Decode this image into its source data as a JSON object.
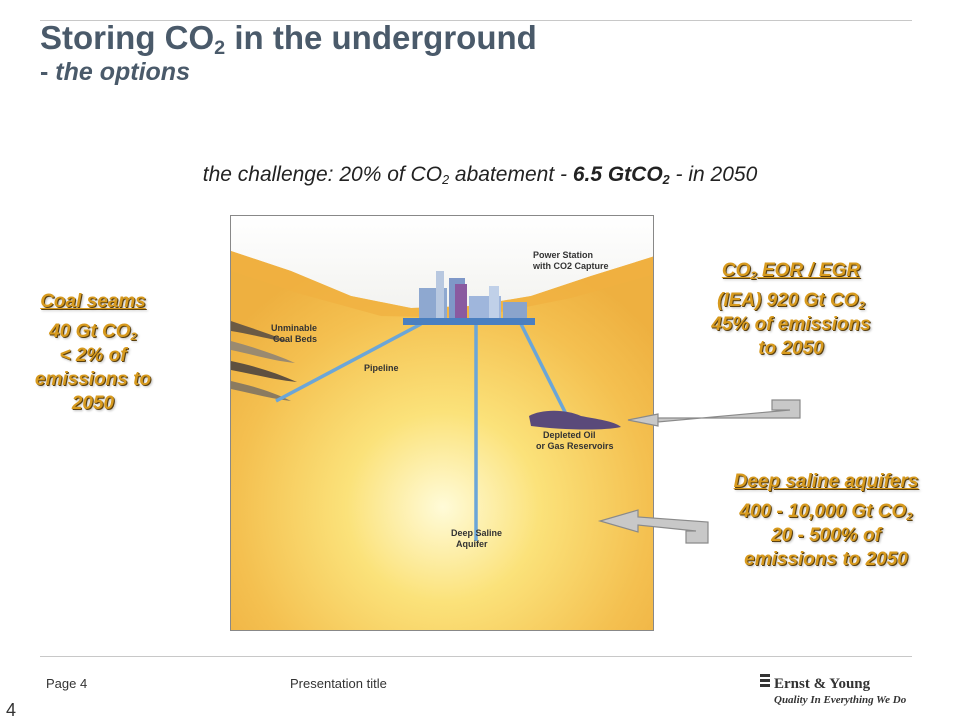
{
  "title": {
    "line1_pre": "Storing CO",
    "line1_sub": "2",
    "line1_post": " in the underground",
    "line2_dash": "- ",
    "line2_italic": "the options"
  },
  "challenge": {
    "pre": "the challenge: 20% of CO",
    "sub1": "2",
    "mid": " abatement - ",
    "bold_pre": "6.5 GtCO",
    "sub2": "2",
    "post": " - in 2050"
  },
  "diagram": {
    "power_station_l1": "Power Station",
    "power_station_l2": "with CO2 Capture",
    "coal_beds_l1": "Unminable",
    "coal_beds_l2": "Coal Beds",
    "pipeline": "Pipeline",
    "depleted_l1": "Depleted Oil",
    "depleted_l2": "or Gas Reservoirs",
    "saline_l1": "Deep Saline",
    "saline_l2": "Aquifer"
  },
  "callouts": {
    "coal": {
      "head": "Coal seams",
      "l1_pre": "40 Gt CO",
      "l1_sub": "2",
      "l2": "< 2% of",
      "l3": "emissions to",
      "l4": "2050"
    },
    "eor": {
      "head_pre": "CO",
      "head_sub": "2",
      "head_post": " EOR / EGR",
      "l1_pre": "(IEA) 920 Gt CO",
      "l1_sub": "2",
      "l2": "45% of emissions",
      "l3": "to 2050"
    },
    "saline": {
      "head": "Deep saline aquifers",
      "l1_pre": "400 - 10,000 Gt CO",
      "l1_sub": "2",
      "l2": "20 - 500% of",
      "l3": "emissions to 2050"
    }
  },
  "footer": {
    "page": "Page 4",
    "presentation": "Presentation title",
    "logo_name": "Ernst & Young",
    "logo_tagline": "Quality In Everything We Do",
    "slide_number": "4"
  }
}
